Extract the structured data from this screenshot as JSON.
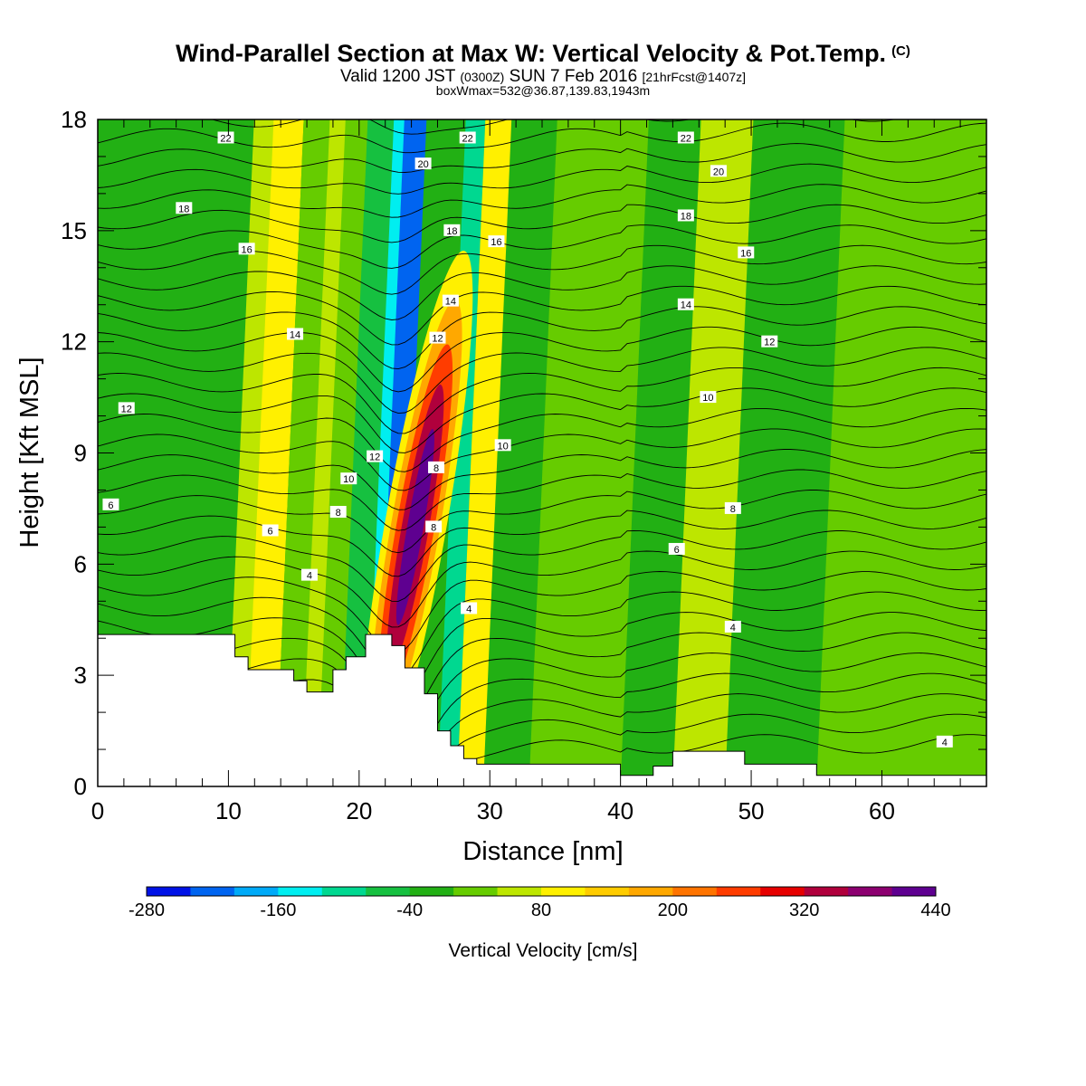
{
  "title": {
    "main": "Wind-Parallel Section at Max W: Vertical Velocity & Pot.Temp.",
    "main_suffix": "(C)",
    "valid_prefix": "Valid 1200 JST",
    "valid_zulu": "(0300Z)",
    "valid_date": "SUN 7 Feb 2016",
    "valid_fcst": "[21hrFcst@1407z]",
    "box": "boxWmax=532@36.87,139.83,1943m"
  },
  "chart_data": {
    "type": "contour",
    "xlabel": "Distance [nm]",
    "ylabel": "Height [Kft MSL]",
    "xlim": [
      0,
      68
    ],
    "ylim": [
      0,
      18
    ],
    "x_ticks": [
      0,
      10,
      20,
      30,
      40,
      50,
      60
    ],
    "y_ticks": [
      0,
      3,
      6,
      9,
      12,
      15,
      18
    ],
    "colorbar": {
      "label": "Vertical Velocity [cm/s]",
      "tick_labels": [
        "-280",
        "-160",
        "-40",
        "80",
        "200",
        "320",
        "440"
      ],
      "levels": [
        -280,
        -240,
        -200,
        -160,
        -120,
        -80,
        -40,
        0,
        40,
        80,
        120,
        160,
        200,
        240,
        280,
        320,
        360,
        400,
        440
      ],
      "colors": [
        "#0012e6",
        "#0064f0",
        "#00aaf8",
        "#00eef0",
        "#00d890",
        "#16c040",
        "#22b014",
        "#66cc00",
        "#bde600",
        "#fff000",
        "#ffcc00",
        "#ffa800",
        "#ff7400",
        "#ff3c00",
        "#e60000",
        "#b0003c",
        "#8c0070",
        "#5e0090"
      ]
    },
    "terrain_kft": [
      [
        0,
        4.1
      ],
      [
        10.5,
        4.1
      ],
      [
        10.5,
        3.5
      ],
      [
        11.5,
        3.5
      ],
      [
        11.5,
        3.15
      ],
      [
        15,
        3.15
      ],
      [
        15,
        2.85
      ],
      [
        16,
        2.85
      ],
      [
        16,
        2.55
      ],
      [
        18,
        2.55
      ],
      [
        18,
        3.15
      ],
      [
        19,
        3.15
      ],
      [
        19,
        3.5
      ],
      [
        20.5,
        3.5
      ],
      [
        20.5,
        4.1
      ],
      [
        22.5,
        4.1
      ],
      [
        22.5,
        3.8
      ],
      [
        23.5,
        3.8
      ],
      [
        23.5,
        3.2
      ],
      [
        25,
        3.2
      ],
      [
        25,
        2.5
      ],
      [
        26,
        2.5
      ],
      [
        26,
        1.5
      ],
      [
        27,
        1.5
      ],
      [
        27,
        1.1
      ],
      [
        28,
        1.1
      ],
      [
        28,
        0.75
      ],
      [
        29,
        0.75
      ],
      [
        29,
        0.6
      ],
      [
        40,
        0.6
      ],
      [
        40,
        0.3
      ],
      [
        42.5,
        0.3
      ],
      [
        42.5,
        0.55
      ],
      [
        44,
        0.55
      ],
      [
        44,
        0.95
      ],
      [
        49.5,
        0.95
      ],
      [
        49.5,
        0.6
      ],
      [
        55,
        0.6
      ],
      [
        55,
        0.3
      ],
      [
        68,
        0.3
      ]
    ],
    "vertical_velocity_bands": [
      {
        "x0": 0,
        "x1": 68,
        "w": -20
      },
      {
        "x0": 9.8,
        "x1": 12.2,
        "w": 60
      },
      {
        "x0": 11.3,
        "x1": 13.6,
        "w": 90
      },
      {
        "x0": 13.6,
        "x1": 15.8,
        "w": 0
      },
      {
        "x0": 15.6,
        "x1": 17.0,
        "w": 60
      },
      {
        "x0": 16.8,
        "x1": 18.8,
        "w": 0
      },
      {
        "x0": 18.5,
        "x1": 21.5,
        "w": -60
      },
      {
        "x0": 20.5,
        "x1": 22.0,
        "w": -130
      },
      {
        "x0": 21.3,
        "x1": 23.0,
        "w": -240
      },
      {
        "x0": 26.0,
        "x1": 27.5,
        "w": -120
      },
      {
        "x0": 27.5,
        "x1": 29.5,
        "w": 90
      },
      {
        "x0": 33,
        "x1": 40,
        "w": 20
      },
      {
        "x0": 44,
        "x1": 48,
        "w": 40
      },
      {
        "x0": 55,
        "x1": 68,
        "w": 20
      }
    ],
    "updraft_core": {
      "x": 24.3,
      "height_kft": 7.0,
      "max_w": 532
    },
    "theta_contour_labels": [
      {
        "value": "22",
        "x": 9.8,
        "y": 17.5
      },
      {
        "value": "20",
        "x": 24.9,
        "y": 16.8
      },
      {
        "value": "22",
        "x": 28.3,
        "y": 17.5
      },
      {
        "value": "18",
        "x": 6.6,
        "y": 15.6
      },
      {
        "value": "16",
        "x": 11.4,
        "y": 14.5
      },
      {
        "value": "18",
        "x": 27.1,
        "y": 15.0
      },
      {
        "value": "16",
        "x": 30.5,
        "y": 14.7
      },
      {
        "value": "14",
        "x": 15.1,
        "y": 12.2
      },
      {
        "value": "14",
        "x": 27.0,
        "y": 13.1
      },
      {
        "value": "12",
        "x": 26.0,
        "y": 12.1
      },
      {
        "value": "12",
        "x": 2.2,
        "y": 10.2
      },
      {
        "value": "12",
        "x": 21.2,
        "y": 8.9
      },
      {
        "value": "10",
        "x": 19.2,
        "y": 8.3
      },
      {
        "value": "10",
        "x": 31.0,
        "y": 9.2
      },
      {
        "value": "8",
        "x": 25.9,
        "y": 8.6
      },
      {
        "value": "8",
        "x": 18.4,
        "y": 7.4
      },
      {
        "value": "6",
        "x": 1.0,
        "y": 7.6
      },
      {
        "value": "6",
        "x": 13.2,
        "y": 6.9
      },
      {
        "value": "8",
        "x": 25.7,
        "y": 7.0
      },
      {
        "value": "4",
        "x": 16.2,
        "y": 5.7
      },
      {
        "value": "4",
        "x": 28.4,
        "y": 4.8
      },
      {
        "value": "22",
        "x": 45.0,
        "y": 17.5
      },
      {
        "value": "20",
        "x": 47.5,
        "y": 16.6
      },
      {
        "value": "18",
        "x": 45.0,
        "y": 15.4
      },
      {
        "value": "16",
        "x": 49.6,
        "y": 14.4
      },
      {
        "value": "14",
        "x": 45.0,
        "y": 13.0
      },
      {
        "value": "12",
        "x": 51.4,
        "y": 12.0
      },
      {
        "value": "10",
        "x": 46.7,
        "y": 10.5
      },
      {
        "value": "8",
        "x": 48.6,
        "y": 7.5
      },
      {
        "value": "6",
        "x": 44.3,
        "y": 6.4
      },
      {
        "value": "4",
        "x": 48.6,
        "y": 4.3
      },
      {
        "value": "4",
        "x": 64.8,
        "y": 1.2
      }
    ]
  }
}
